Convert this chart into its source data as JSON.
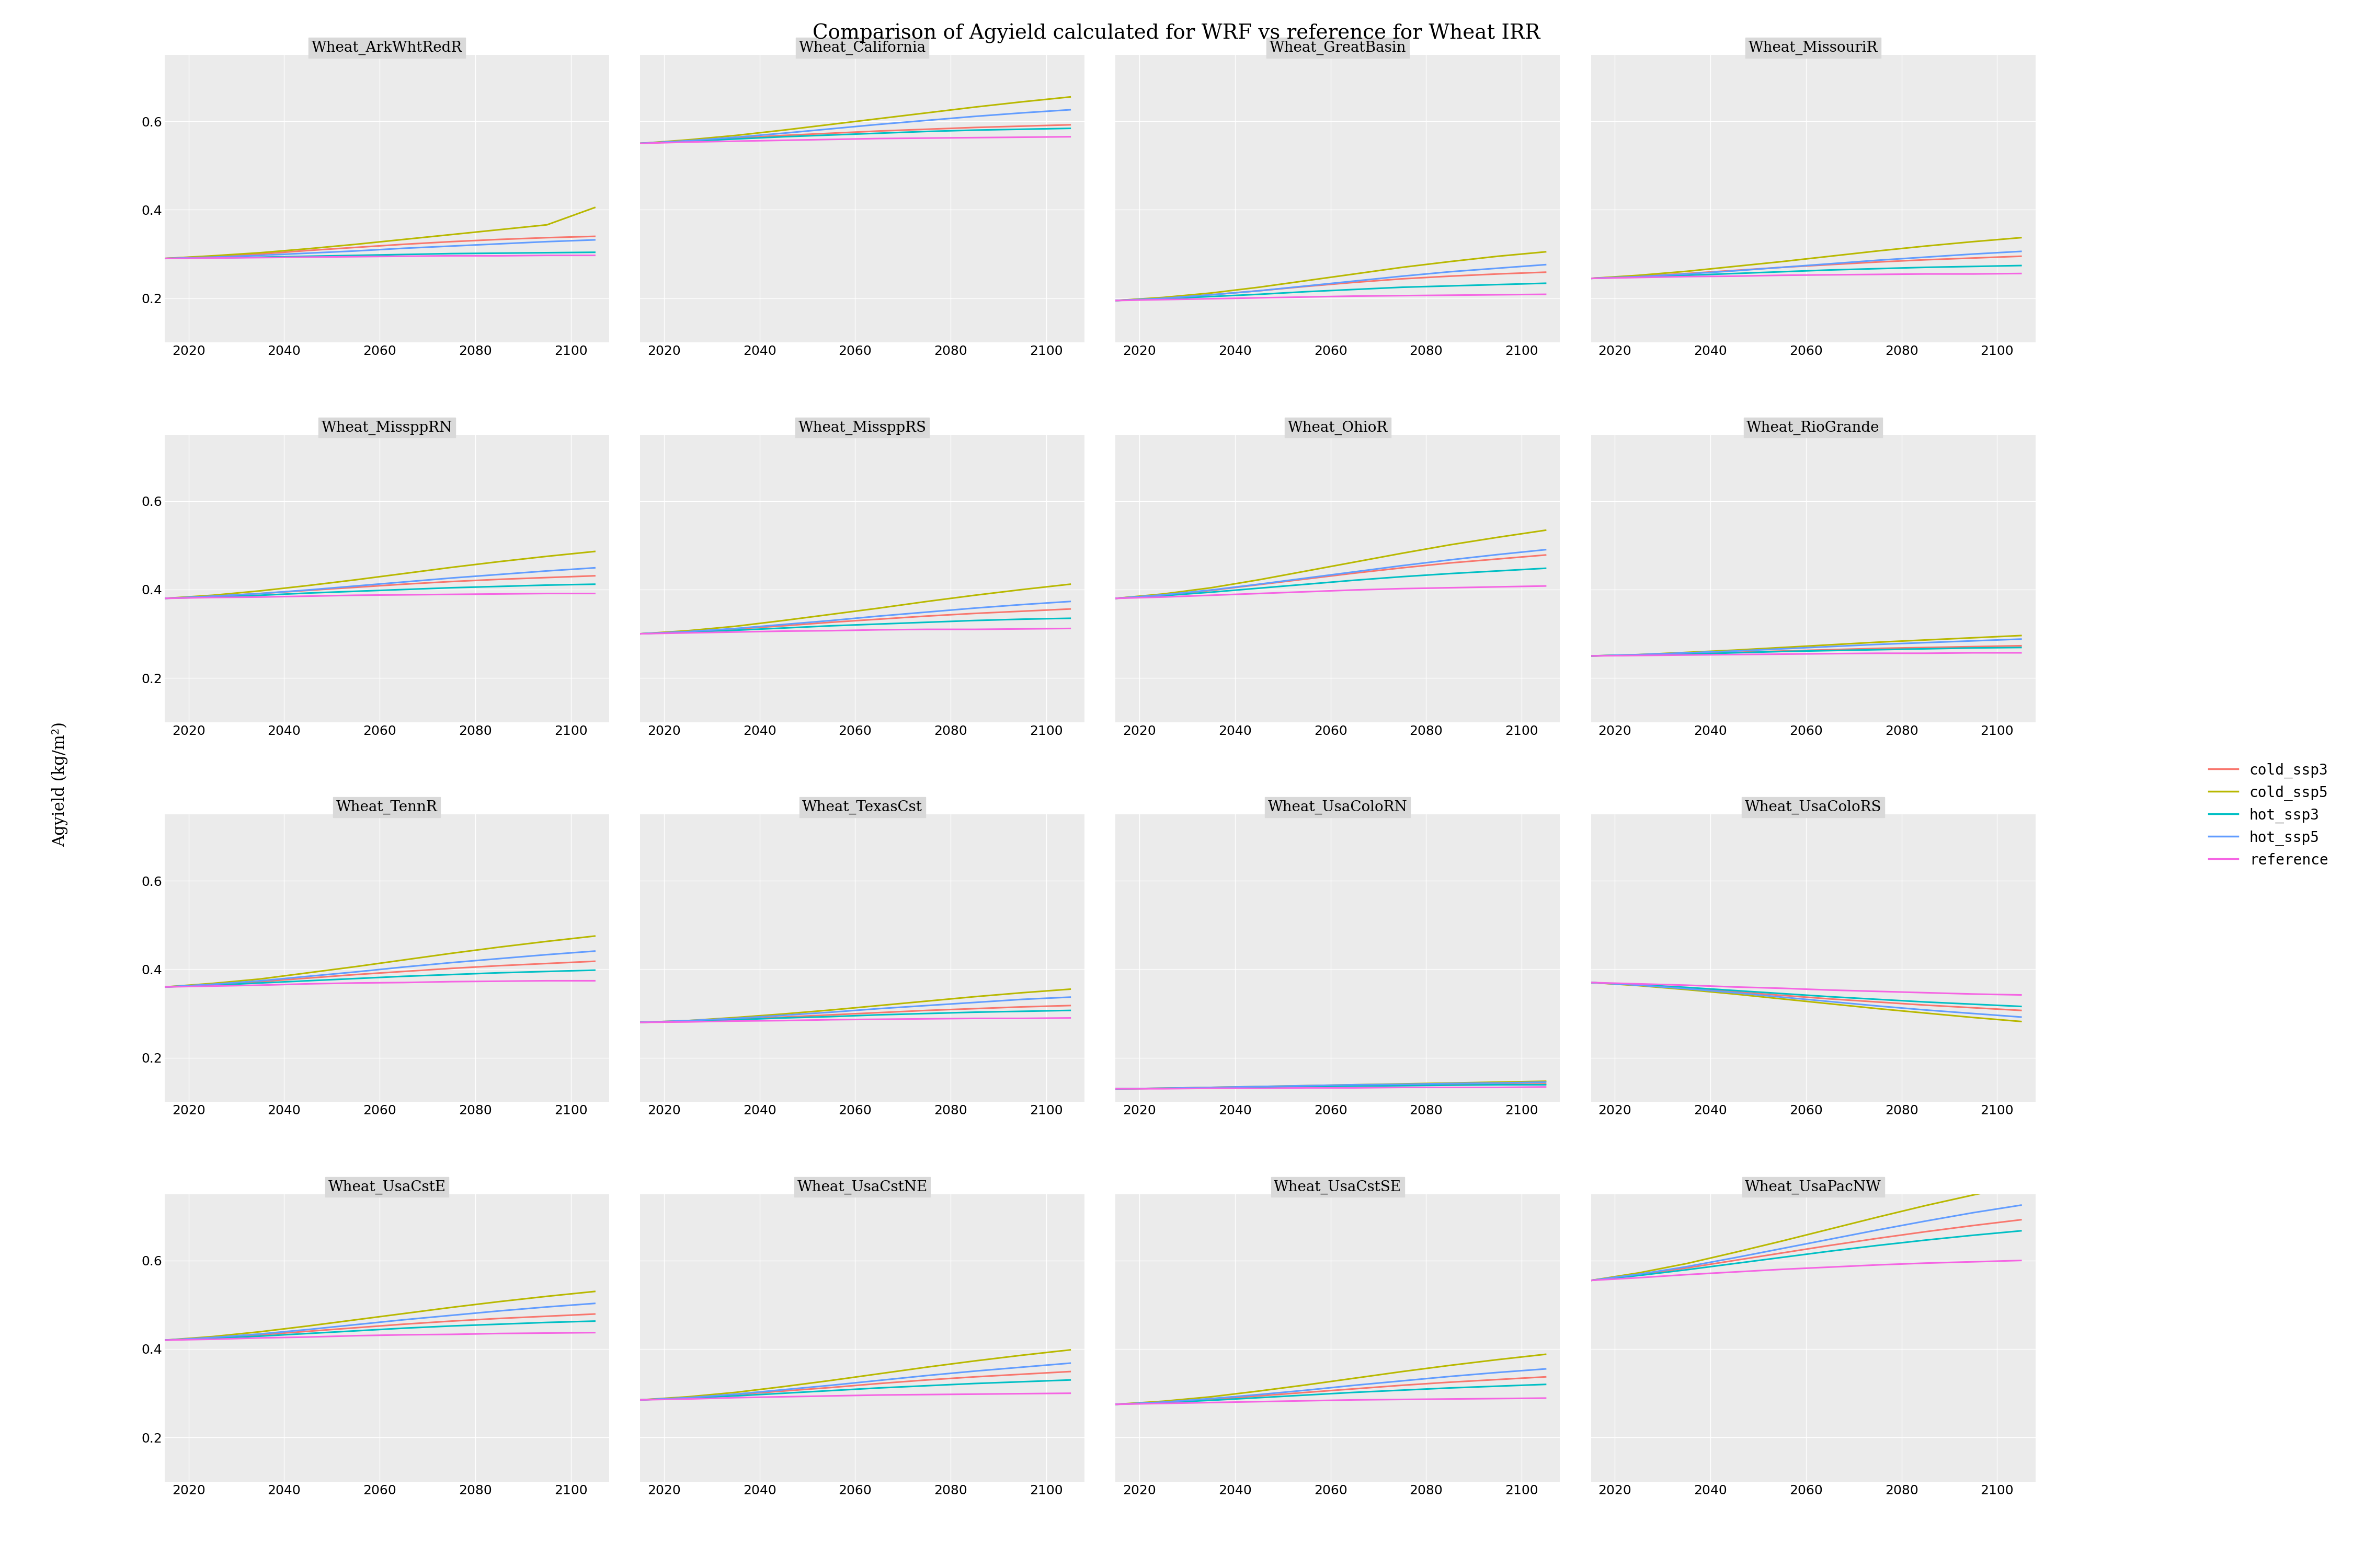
{
  "title": "Comparison of Agyield calculated for WRF vs reference for Wheat IRR",
  "ylabel": "Agyield (kg/m²)",
  "subplots": [
    "Wheat_ArkWhtRedR",
    "Wheat_California",
    "Wheat_GreatBasin",
    "Wheat_MissouriR",
    "Wheat_MissppRN",
    "Wheat_MissppRS",
    "Wheat_OhioR",
    "Wheat_RioGrande",
    "Wheat_TennR",
    "Wheat_TexasCst",
    "Wheat_UsaColoRN",
    "Wheat_UsaColoRS",
    "Wheat_UsaCstE",
    "Wheat_UsaCstNE",
    "Wheat_UsaCstSE",
    "Wheat_UsaPacNW"
  ],
  "series": [
    "cold_ssp3",
    "cold_ssp5",
    "hot_ssp3",
    "hot_ssp5",
    "reference"
  ],
  "colors": {
    "cold_ssp3": "#F8766D",
    "cold_ssp5": "#B8B800",
    "hot_ssp3": "#00BFC4",
    "hot_ssp5": "#619CFF",
    "reference": "#F564E3"
  },
  "x": [
    2015,
    2025,
    2035,
    2045,
    2055,
    2065,
    2075,
    2085,
    2095,
    2105
  ],
  "data": {
    "Wheat_ArkWhtRedR": {
      "cold_ssp3": [
        0.29,
        0.295,
        0.3,
        0.308,
        0.315,
        0.322,
        0.328,
        0.333,
        0.337,
        0.34
      ],
      "cold_ssp5": [
        0.29,
        0.296,
        0.303,
        0.312,
        0.322,
        0.333,
        0.344,
        0.355,
        0.366,
        0.405
      ],
      "hot_ssp3": [
        0.29,
        0.291,
        0.293,
        0.295,
        0.297,
        0.299,
        0.301,
        0.302,
        0.303,
        0.304
      ],
      "hot_ssp5": [
        0.29,
        0.293,
        0.297,
        0.302,
        0.307,
        0.313,
        0.318,
        0.323,
        0.328,
        0.332
      ],
      "reference": [
        0.29,
        0.291,
        0.292,
        0.293,
        0.294,
        0.295,
        0.296,
        0.296,
        0.297,
        0.297
      ]
    },
    "Wheat_California": {
      "cold_ssp3": [
        0.55,
        0.556,
        0.562,
        0.568,
        0.573,
        0.578,
        0.582,
        0.586,
        0.589,
        0.592
      ],
      "cold_ssp5": [
        0.55,
        0.558,
        0.568,
        0.58,
        0.593,
        0.606,
        0.619,
        0.632,
        0.644,
        0.655
      ],
      "hot_ssp3": [
        0.55,
        0.555,
        0.56,
        0.565,
        0.569,
        0.573,
        0.577,
        0.58,
        0.582,
        0.584
      ],
      "hot_ssp5": [
        0.55,
        0.556,
        0.564,
        0.573,
        0.583,
        0.593,
        0.602,
        0.611,
        0.619,
        0.626
      ],
      "reference": [
        0.55,
        0.553,
        0.555,
        0.557,
        0.559,
        0.561,
        0.562,
        0.563,
        0.564,
        0.565
      ]
    },
    "Wheat_GreatBasin": {
      "cold_ssp3": [
        0.195,
        0.2,
        0.208,
        0.217,
        0.227,
        0.236,
        0.244,
        0.25,
        0.255,
        0.259
      ],
      "cold_ssp5": [
        0.195,
        0.202,
        0.212,
        0.225,
        0.24,
        0.255,
        0.27,
        0.283,
        0.295,
        0.305
      ],
      "hot_ssp3": [
        0.195,
        0.199,
        0.204,
        0.209,
        0.215,
        0.22,
        0.225,
        0.228,
        0.231,
        0.234
      ],
      "hot_ssp5": [
        0.195,
        0.2,
        0.208,
        0.217,
        0.228,
        0.239,
        0.25,
        0.26,
        0.268,
        0.276
      ],
      "reference": [
        0.195,
        0.197,
        0.199,
        0.201,
        0.203,
        0.205,
        0.206,
        0.207,
        0.208,
        0.209
      ]
    },
    "Wheat_MissouriR": {
      "cold_ssp3": [
        0.245,
        0.25,
        0.256,
        0.263,
        0.27,
        0.276,
        0.282,
        0.287,
        0.291,
        0.295
      ],
      "cold_ssp5": [
        0.245,
        0.252,
        0.261,
        0.272,
        0.283,
        0.295,
        0.307,
        0.318,
        0.328,
        0.337
      ],
      "hot_ssp3": [
        0.245,
        0.248,
        0.252,
        0.256,
        0.26,
        0.264,
        0.267,
        0.27,
        0.272,
        0.274
      ],
      "hot_ssp5": [
        0.245,
        0.249,
        0.255,
        0.262,
        0.27,
        0.278,
        0.286,
        0.293,
        0.3,
        0.306
      ],
      "reference": [
        0.245,
        0.247,
        0.249,
        0.25,
        0.252,
        0.253,
        0.254,
        0.255,
        0.255,
        0.256
      ]
    },
    "Wheat_MissppRN": {
      "cold_ssp3": [
        0.38,
        0.385,
        0.391,
        0.398,
        0.405,
        0.412,
        0.418,
        0.423,
        0.427,
        0.431
      ],
      "cold_ssp5": [
        0.38,
        0.387,
        0.397,
        0.409,
        0.422,
        0.436,
        0.45,
        0.463,
        0.475,
        0.486
      ],
      "hot_ssp3": [
        0.38,
        0.383,
        0.387,
        0.392,
        0.396,
        0.4,
        0.404,
        0.407,
        0.41,
        0.412
      ],
      "hot_ssp5": [
        0.38,
        0.385,
        0.391,
        0.399,
        0.408,
        0.417,
        0.426,
        0.434,
        0.442,
        0.449
      ],
      "reference": [
        0.38,
        0.382,
        0.383,
        0.385,
        0.387,
        0.388,
        0.389,
        0.39,
        0.391,
        0.391
      ]
    },
    "Wheat_MissppRS": {
      "cold_ssp3": [
        0.3,
        0.305,
        0.311,
        0.318,
        0.326,
        0.333,
        0.34,
        0.346,
        0.351,
        0.356
      ],
      "cold_ssp5": [
        0.3,
        0.307,
        0.317,
        0.33,
        0.344,
        0.358,
        0.373,
        0.387,
        0.4,
        0.412
      ],
      "hot_ssp3": [
        0.3,
        0.304,
        0.308,
        0.313,
        0.318,
        0.322,
        0.326,
        0.33,
        0.333,
        0.335
      ],
      "hot_ssp5": [
        0.3,
        0.305,
        0.312,
        0.321,
        0.33,
        0.34,
        0.349,
        0.358,
        0.366,
        0.373
      ],
      "reference": [
        0.3,
        0.302,
        0.304,
        0.306,
        0.307,
        0.309,
        0.31,
        0.31,
        0.311,
        0.312
      ]
    },
    "Wheat_OhioR": {
      "cold_ssp3": [
        0.38,
        0.388,
        0.398,
        0.411,
        0.424,
        0.437,
        0.449,
        0.46,
        0.469,
        0.478
      ],
      "cold_ssp5": [
        0.38,
        0.39,
        0.404,
        0.422,
        0.442,
        0.462,
        0.482,
        0.501,
        0.518,
        0.534
      ],
      "hot_ssp3": [
        0.38,
        0.386,
        0.394,
        0.403,
        0.412,
        0.421,
        0.429,
        0.436,
        0.442,
        0.448
      ],
      "hot_ssp5": [
        0.38,
        0.388,
        0.399,
        0.412,
        0.426,
        0.44,
        0.454,
        0.467,
        0.479,
        0.49
      ],
      "reference": [
        0.38,
        0.383,
        0.387,
        0.391,
        0.395,
        0.399,
        0.402,
        0.404,
        0.406,
        0.408
      ]
    },
    "Wheat_RioGrande": {
      "cold_ssp3": [
        0.25,
        0.252,
        0.255,
        0.258,
        0.261,
        0.264,
        0.267,
        0.269,
        0.271,
        0.273
      ],
      "cold_ssp5": [
        0.25,
        0.253,
        0.258,
        0.263,
        0.269,
        0.275,
        0.281,
        0.286,
        0.291,
        0.296
      ],
      "hot_ssp3": [
        0.25,
        0.252,
        0.254,
        0.257,
        0.26,
        0.262,
        0.264,
        0.266,
        0.268,
        0.269
      ],
      "hot_ssp5": [
        0.25,
        0.253,
        0.257,
        0.261,
        0.266,
        0.271,
        0.276,
        0.28,
        0.284,
        0.288
      ],
      "reference": [
        0.25,
        0.251,
        0.252,
        0.253,
        0.254,
        0.255,
        0.256,
        0.256,
        0.257,
        0.257
      ]
    },
    "Wheat_TennR": {
      "cold_ssp3": [
        0.36,
        0.365,
        0.372,
        0.38,
        0.388,
        0.395,
        0.402,
        0.408,
        0.413,
        0.418
      ],
      "cold_ssp5": [
        0.36,
        0.368,
        0.378,
        0.392,
        0.406,
        0.421,
        0.436,
        0.45,
        0.463,
        0.475
      ],
      "hot_ssp3": [
        0.36,
        0.364,
        0.369,
        0.374,
        0.379,
        0.384,
        0.388,
        0.392,
        0.395,
        0.398
      ],
      "hot_ssp5": [
        0.36,
        0.366,
        0.374,
        0.384,
        0.394,
        0.405,
        0.415,
        0.424,
        0.433,
        0.441
      ],
      "reference": [
        0.36,
        0.362,
        0.364,
        0.367,
        0.369,
        0.37,
        0.372,
        0.373,
        0.374,
        0.374
      ]
    },
    "Wheat_TexasCst": {
      "cold_ssp3": [
        0.28,
        0.283,
        0.287,
        0.292,
        0.297,
        0.302,
        0.307,
        0.311,
        0.315,
        0.318
      ],
      "cold_ssp5": [
        0.28,
        0.284,
        0.291,
        0.299,
        0.308,
        0.318,
        0.328,
        0.338,
        0.347,
        0.355
      ],
      "hot_ssp3": [
        0.28,
        0.283,
        0.286,
        0.29,
        0.293,
        0.297,
        0.3,
        0.303,
        0.305,
        0.307
      ],
      "hot_ssp5": [
        0.28,
        0.284,
        0.289,
        0.296,
        0.303,
        0.311,
        0.318,
        0.325,
        0.332,
        0.337
      ],
      "reference": [
        0.28,
        0.281,
        0.283,
        0.284,
        0.286,
        0.287,
        0.288,
        0.289,
        0.289,
        0.29
      ]
    },
    "Wheat_UsaColoRN": {
      "cold_ssp3": [
        0.13,
        0.131,
        0.133,
        0.134,
        0.136,
        0.137,
        0.138,
        0.139,
        0.14,
        0.141
      ],
      "cold_ssp5": [
        0.13,
        0.131,
        0.133,
        0.135,
        0.137,
        0.139,
        0.141,
        0.143,
        0.145,
        0.147
      ],
      "hot_ssp3": [
        0.13,
        0.131,
        0.132,
        0.134,
        0.135,
        0.136,
        0.137,
        0.138,
        0.139,
        0.139
      ],
      "hot_ssp5": [
        0.13,
        0.131,
        0.133,
        0.135,
        0.137,
        0.139,
        0.14,
        0.142,
        0.143,
        0.145
      ],
      "reference": [
        0.13,
        0.13,
        0.131,
        0.131,
        0.132,
        0.132,
        0.133,
        0.133,
        0.133,
        0.134
      ]
    },
    "Wheat_UsaColoRS": {
      "cold_ssp3": [
        0.37,
        0.364,
        0.357,
        0.349,
        0.341,
        0.333,
        0.326,
        0.319,
        0.313,
        0.307
      ],
      "cold_ssp5": [
        0.37,
        0.363,
        0.354,
        0.344,
        0.333,
        0.322,
        0.311,
        0.301,
        0.291,
        0.282
      ],
      "hot_ssp3": [
        0.37,
        0.365,
        0.359,
        0.352,
        0.345,
        0.338,
        0.332,
        0.326,
        0.321,
        0.316
      ],
      "hot_ssp5": [
        0.37,
        0.364,
        0.356,
        0.347,
        0.337,
        0.327,
        0.317,
        0.308,
        0.3,
        0.292
      ],
      "reference": [
        0.37,
        0.367,
        0.364,
        0.36,
        0.357,
        0.353,
        0.35,
        0.347,
        0.344,
        0.342
      ]
    },
    "Wheat_UsaCstE": {
      "cold_ssp3": [
        0.42,
        0.425,
        0.432,
        0.44,
        0.448,
        0.456,
        0.463,
        0.469,
        0.474,
        0.479
      ],
      "cold_ssp5": [
        0.42,
        0.428,
        0.439,
        0.452,
        0.466,
        0.48,
        0.494,
        0.507,
        0.519,
        0.53
      ],
      "hot_ssp3": [
        0.42,
        0.424,
        0.429,
        0.435,
        0.441,
        0.447,
        0.452,
        0.456,
        0.46,
        0.463
      ],
      "hot_ssp5": [
        0.42,
        0.426,
        0.434,
        0.444,
        0.455,
        0.466,
        0.476,
        0.486,
        0.495,
        0.503
      ],
      "reference": [
        0.42,
        0.422,
        0.425,
        0.427,
        0.43,
        0.432,
        0.433,
        0.435,
        0.436,
        0.437
      ]
    },
    "Wheat_UsaCstNE": {
      "cold_ssp3": [
        0.285,
        0.29,
        0.297,
        0.305,
        0.313,
        0.322,
        0.33,
        0.337,
        0.343,
        0.349
      ],
      "cold_ssp5": [
        0.285,
        0.292,
        0.302,
        0.315,
        0.329,
        0.344,
        0.359,
        0.373,
        0.386,
        0.398
      ],
      "hot_ssp3": [
        0.285,
        0.289,
        0.294,
        0.3,
        0.306,
        0.312,
        0.317,
        0.322,
        0.326,
        0.33
      ],
      "hot_ssp5": [
        0.285,
        0.29,
        0.298,
        0.308,
        0.318,
        0.329,
        0.34,
        0.35,
        0.359,
        0.368
      ],
      "reference": [
        0.285,
        0.287,
        0.29,
        0.292,
        0.294,
        0.296,
        0.297,
        0.298,
        0.299,
        0.3
      ]
    },
    "Wheat_UsaCstSE": {
      "cold_ssp3": [
        0.275,
        0.28,
        0.286,
        0.294,
        0.302,
        0.31,
        0.318,
        0.325,
        0.331,
        0.337
      ],
      "cold_ssp5": [
        0.275,
        0.282,
        0.292,
        0.305,
        0.319,
        0.334,
        0.349,
        0.363,
        0.376,
        0.388
      ],
      "hot_ssp3": [
        0.275,
        0.279,
        0.284,
        0.29,
        0.296,
        0.302,
        0.307,
        0.312,
        0.316,
        0.32
      ],
      "hot_ssp5": [
        0.275,
        0.28,
        0.288,
        0.297,
        0.307,
        0.318,
        0.328,
        0.338,
        0.347,
        0.355
      ],
      "reference": [
        0.275,
        0.277,
        0.279,
        0.281,
        0.283,
        0.285,
        0.286,
        0.287,
        0.288,
        0.289
      ]
    },
    "Wheat_UsaPacNW": {
      "cold_ssp3": [
        0.555,
        0.568,
        0.583,
        0.6,
        0.617,
        0.634,
        0.65,
        0.665,
        0.679,
        0.692
      ],
      "cold_ssp5": [
        0.555,
        0.572,
        0.593,
        0.618,
        0.644,
        0.671,
        0.698,
        0.724,
        0.748,
        0.77
      ],
      "hot_ssp3": [
        0.555,
        0.566,
        0.579,
        0.593,
        0.607,
        0.621,
        0.634,
        0.646,
        0.657,
        0.667
      ],
      "hot_ssp5": [
        0.555,
        0.569,
        0.586,
        0.606,
        0.627,
        0.648,
        0.669,
        0.689,
        0.708,
        0.725
      ],
      "reference": [
        0.555,
        0.561,
        0.568,
        0.574,
        0.58,
        0.585,
        0.59,
        0.594,
        0.597,
        0.6
      ]
    }
  },
  "ylim": [
    0.1,
    0.75
  ],
  "yticks": [
    0.2,
    0.4,
    0.6
  ],
  "xticks": [
    2020,
    2040,
    2060,
    2080,
    2100
  ],
  "bg_color": "#EBEBEB",
  "title_header_color": "#D9D9D9",
  "grid_color": "white",
  "title_fontsize": 28,
  "subplot_title_fontsize": 20,
  "label_fontsize": 22,
  "tick_fontsize": 18,
  "legend_fontsize": 20
}
